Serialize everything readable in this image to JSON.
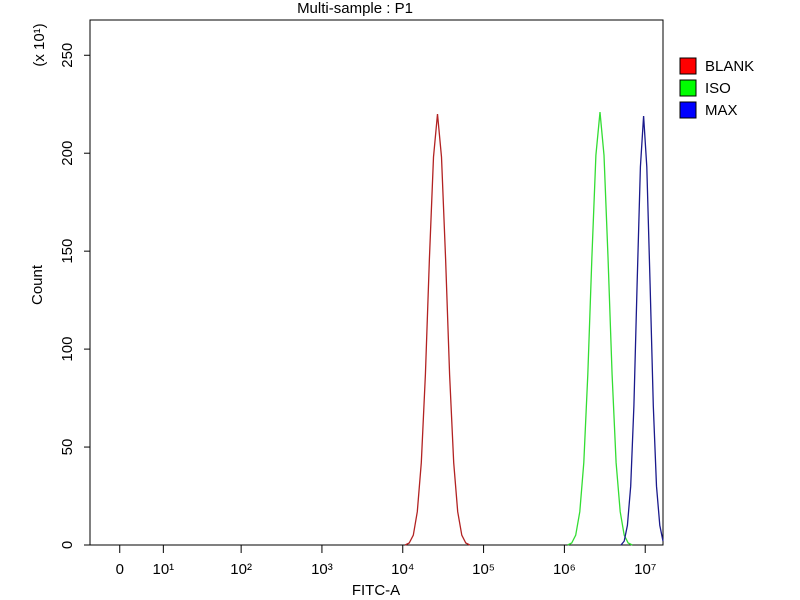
{
  "chart_data": {
    "type": "line",
    "title": "Multi-sample : P1",
    "x_label": "FITC-A",
    "y_label": "Count",
    "y_multiplier": "(x 10¹)",
    "xscale": "asinh",
    "xlim": [
      -6,
      16595869
    ],
    "ylim": [
      0,
      268
    ],
    "xticks": [
      0,
      {
        "value": 10,
        "label": "10¹"
      },
      {
        "value": 100,
        "label": "10²"
      },
      {
        "value": 1000,
        "label": "10³"
      },
      {
        "value": 10000,
        "label": "10⁴"
      },
      {
        "value": 100000,
        "label": "10⁵"
      },
      {
        "value": 1000000,
        "label": "10⁶"
      },
      {
        "value": 10000000,
        "label": "10⁷"
      }
    ],
    "yticks": [
      0,
      50,
      100,
      150,
      200,
      250
    ],
    "legend": "right",
    "series": [
      {
        "name": "BLANK",
        "color": "#b22222",
        "legend_color": "#ff0000",
        "x": [
          10715,
          12023,
          13490,
          15136,
          16982,
          19055,
          21380,
          23988,
          26915,
          30200,
          33884,
          38019,
          42658,
          47863,
          53703,
          60256,
          67608
        ],
        "values": [
          0,
          1,
          5,
          17,
          42,
          87,
          146,
          198,
          220,
          198,
          146,
          87,
          42,
          17,
          5,
          1,
          0
        ]
      },
      {
        "name": "ISO",
        "color": "#33dd33",
        "legend_color": "#00ff00",
        "x": [
          1096478,
          1230269,
          1380384,
          1548817,
          1737801,
          1949845,
          2187762,
          2454709,
          2754229,
          3090295,
          3467369,
          3890451,
          4365158,
          4897788,
          5495409,
          6165950,
          6918310
        ],
        "values": [
          0,
          1,
          5,
          17,
          42,
          87,
          147,
          199,
          221,
          199,
          147,
          87,
          42,
          17,
          5,
          1,
          0
        ]
      },
      {
        "name": "MAX",
        "color": "#1a1a8c",
        "legend_color": "#0000ff",
        "x": [
          5011872,
          5495409,
          6025596,
          6606934,
          7244360,
          7943282,
          8709636,
          9549926,
          10471285,
          11481536,
          12589254,
          13803843,
          15135612,
          16595869
        ],
        "values": [
          0,
          2,
          10,
          30,
          71,
          133,
          193,
          219,
          193,
          133,
          71,
          30,
          10,
          2
        ]
      }
    ]
  }
}
